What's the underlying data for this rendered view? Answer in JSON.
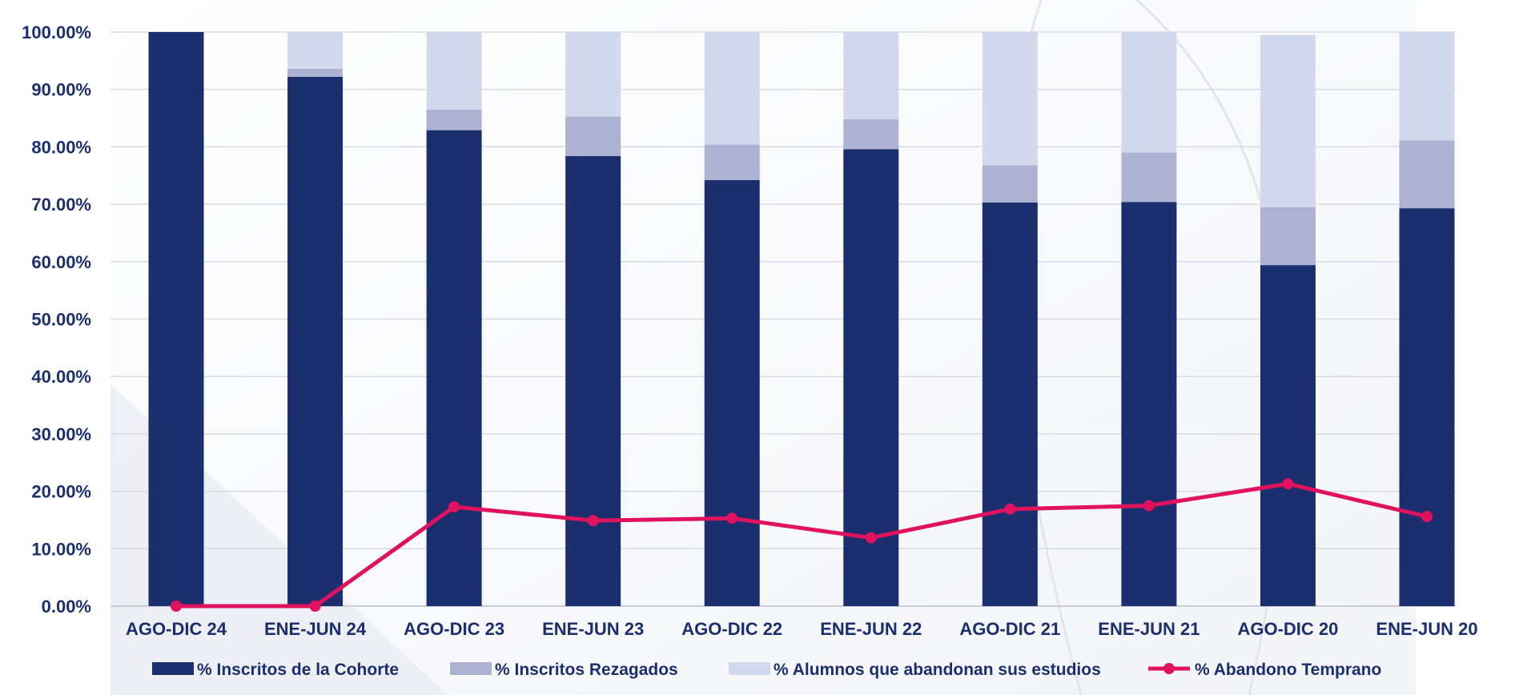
{
  "chart_data": {
    "type": "bar",
    "stacked": true,
    "categories": [
      "AGO-DIC 24",
      "ENE-JUN 24",
      "AGO-DIC 23",
      "ENE-JUN 23",
      "AGO-DIC 22",
      "ENE-JUN 22",
      "AGO-DIC 21",
      "ENE-JUN 21",
      "AGO-DIC 20",
      "ENE-JUN 20"
    ],
    "ylim": [
      0,
      100
    ],
    "yticks": [
      0,
      10,
      20,
      30,
      40,
      50,
      60,
      70,
      80,
      90,
      100
    ],
    "ytick_labels": [
      "0.00%",
      "10.00%",
      "20.00%",
      "30.00%",
      "40.00%",
      "50.00%",
      "60.00%",
      "70.00%",
      "80.00%",
      "90.00%",
      "100.00%"
    ],
    "grid": true,
    "legend_position": "bottom",
    "series": [
      {
        "name": "% Inscritos de la Cohorte",
        "kind": "bar",
        "color": "#1b2f6e",
        "values": [
          100.0,
          92.2,
          82.9,
          78.4,
          74.2,
          79.6,
          70.3,
          70.4,
          59.4,
          69.3
        ]
      },
      {
        "name": "% Inscritos Rezagados",
        "kind": "bar",
        "color": "#adb2d3",
        "values": [
          0.0,
          1.4,
          3.6,
          6.9,
          6.2,
          5.2,
          6.5,
          8.6,
          10.1,
          11.8
        ]
      },
      {
        "name": "% Alumnos que abandonan sus estudios",
        "kind": "bar",
        "color": "#d2d9ec",
        "values": [
          0.0,
          6.4,
          13.5,
          14.7,
          19.6,
          15.2,
          23.2,
          21.0,
          30.0,
          18.9
        ]
      },
      {
        "name": "% Abandono Temprano",
        "kind": "line",
        "color": "#e0125e",
        "values": [
          0.0,
          0.0,
          17.3,
          14.9,
          15.3,
          11.9,
          16.9,
          17.5,
          21.3,
          15.6
        ]
      }
    ]
  }
}
